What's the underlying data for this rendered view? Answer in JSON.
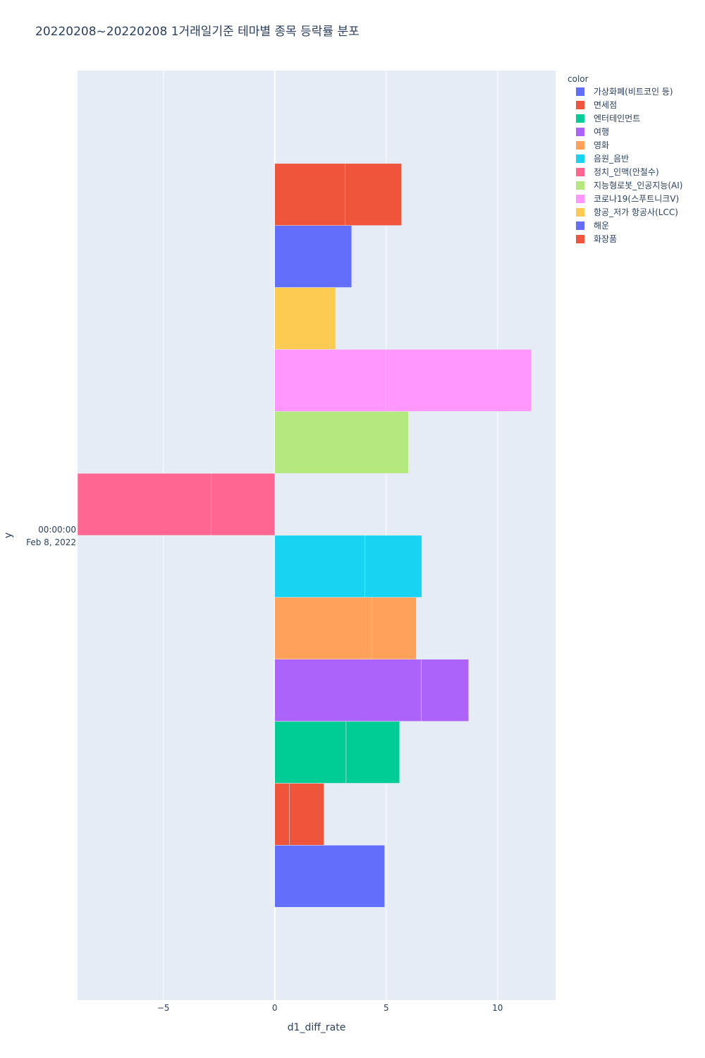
{
  "chart_data": {
    "type": "bar",
    "orientation": "horizontal",
    "barmode": "relative",
    "title": "20220208~20220208 1거래일기준 테마별 종목 등락률 분포",
    "xlabel": "d1_diff_rate",
    "ylabel": "y",
    "y_tick_label": [
      "00:00:00",
      "Feb 8, 2022"
    ],
    "xlim": [
      -8.85,
      12.6
    ],
    "x_ticks": [
      {
        "value": -5,
        "label": "−5"
      },
      {
        "value": 0,
        "label": "0"
      },
      {
        "value": 5,
        "label": "5"
      },
      {
        "value": 10,
        "label": "10"
      }
    ],
    "legend_title": "color",
    "series": [
      {
        "name": "가상화폐(비트코인 등)",
        "color": "#636efa",
        "segments": [
          4.93
        ]
      },
      {
        "name": "면세점",
        "color": "#EF553B",
        "segments": [
          0.65,
          1.55
        ]
      },
      {
        "name": "엔터테인먼트",
        "color": "#00cc96",
        "segments": [
          3.2,
          2.4
        ]
      },
      {
        "name": "여행",
        "color": "#ab63fa",
        "segments": [
          6.57,
          2.13
        ]
      },
      {
        "name": "영화",
        "color": "#FFA15A",
        "segments": [
          4.35,
          2.0
        ]
      },
      {
        "name": "음원_음반",
        "color": "#19d3f3",
        "segments": [
          4.05,
          2.55
        ]
      },
      {
        "name": "정치_인맥(안철수)",
        "color": "#FF6692",
        "segments": [
          -2.85,
          -6.0
        ]
      },
      {
        "name": "지능형로봇_인공지능(AI)",
        "color": "#B6E880",
        "segments": [
          6.0
        ]
      },
      {
        "name": "코로나19(스푸트니크V)",
        "color": "#FF97FF",
        "segments": [
          5.0,
          6.5
        ]
      },
      {
        "name": "항공_저가 항공사(LCC)",
        "color": "#FECB52",
        "segments": [
          2.73
        ]
      },
      {
        "name": "해운",
        "color": "#636efa",
        "segments": [
          3.45
        ]
      },
      {
        "name": "화장품",
        "color": "#EF553B",
        "segments": [
          3.15,
          2.53
        ]
      }
    ]
  }
}
